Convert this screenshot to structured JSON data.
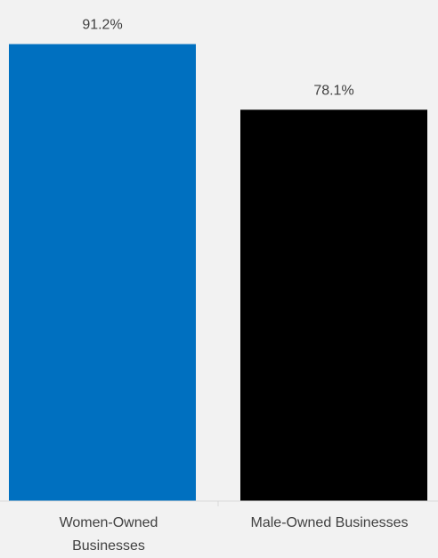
{
  "chart_data": {
    "type": "bar",
    "categories": [
      "Women-Owned Businesses",
      "Male-Owned Businesses"
    ],
    "category_lines": [
      [
        "Women-Owned",
        "Businesses"
      ],
      [
        "Male-Owned Businesses"
      ]
    ],
    "values": [
      91.2,
      78.1
    ],
    "value_labels": [
      "91.2%",
      "78.1%"
    ],
    "colors": [
      "#0070c0",
      "#000000"
    ],
    "ylim": [
      0,
      100
    ],
    "grid": false,
    "title": "",
    "xlabel": "",
    "ylabel": ""
  }
}
